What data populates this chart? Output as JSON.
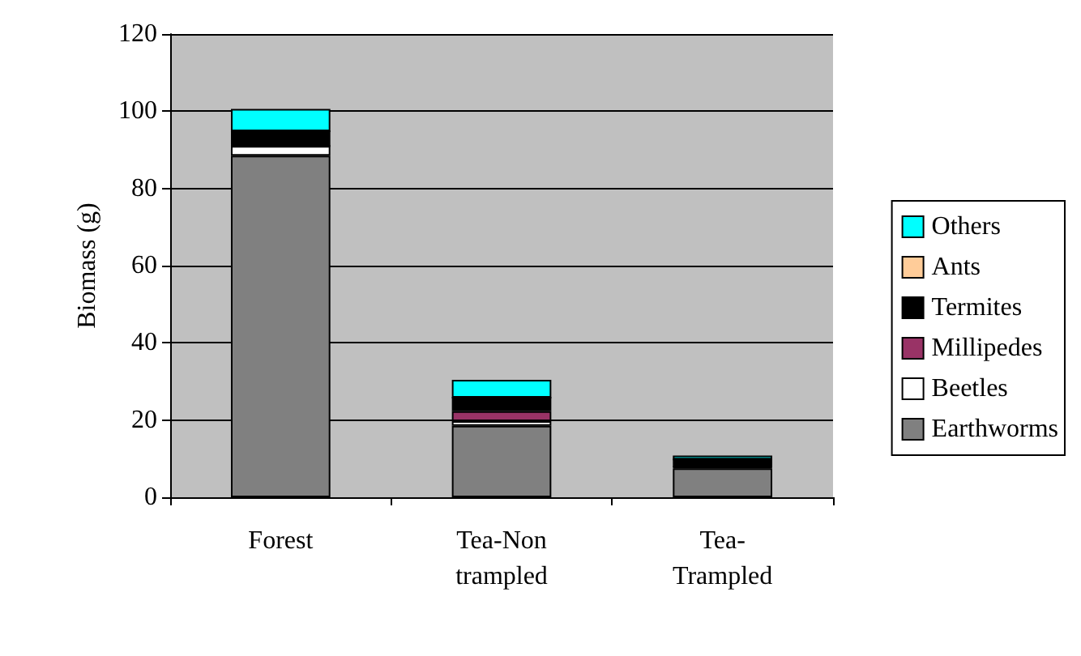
{
  "chart_data": {
    "type": "bar",
    "stacked": true,
    "ylabel": "Biomass (g)",
    "categories": [
      "Forest",
      "Tea-Non trampled",
      "Tea-Trampled"
    ],
    "series": [
      {
        "name": "Earthworms",
        "color": "#808080",
        "values": [
          88.5,
          18.5,
          7.5
        ]
      },
      {
        "name": "Beetles",
        "color": "#ffffff",
        "values": [
          2.5,
          1.2,
          0.3
        ]
      },
      {
        "name": "Millipedes",
        "color": "#993366",
        "values": [
          0,
          2.6,
          0
        ]
      },
      {
        "name": "Termites",
        "color": "#000000",
        "values": [
          3.8,
          3.5,
          2
        ]
      },
      {
        "name": "Ants",
        "color": "#ffcc99",
        "values": [
          0,
          0,
          0
        ]
      },
      {
        "name": "Others",
        "color": "#00ffff",
        "values": [
          5.8,
          4.6,
          1
        ]
      }
    ],
    "ylim": [
      0,
      120
    ],
    "yticks": [
      0,
      20,
      40,
      60,
      80,
      100,
      120
    ],
    "grid": "y",
    "legend": "right"
  }
}
